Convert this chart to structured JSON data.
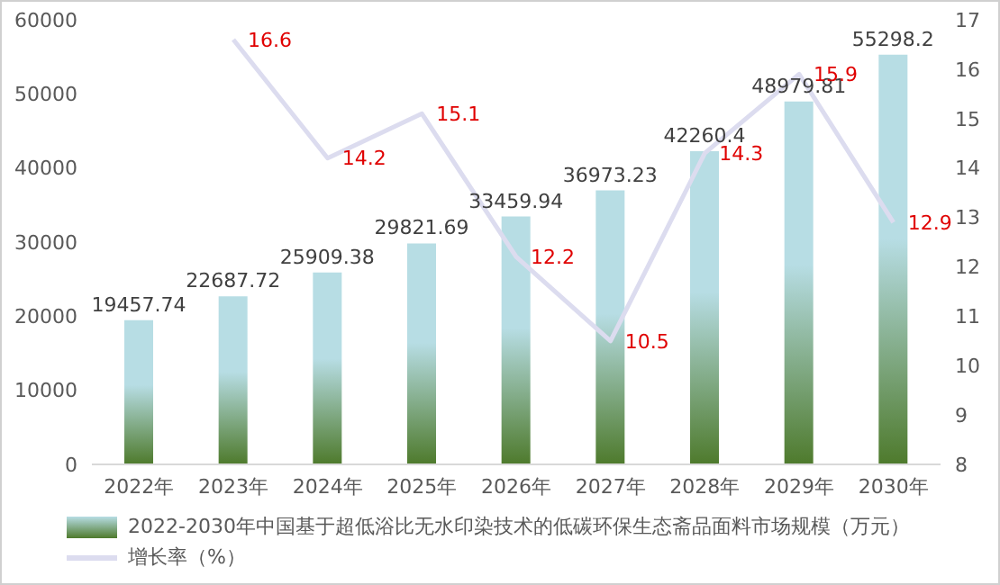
{
  "chart_data": {
    "type": "bar",
    "categories": [
      "2022年",
      "2023年",
      "2024年",
      "2025年",
      "2026年",
      "2027年",
      "2028年",
      "2029年",
      "2030年"
    ],
    "series": [
      {
        "name": "2022-2030年中国基于超低浴比无水印染技术的低碳环保生态斋品面料市场规模（万元）",
        "color": "#b7dde4",
        "values": [
          19457.74,
          22687.72,
          25909.38,
          29821.69,
          33459.94,
          36973.23,
          42260.4,
          48979.81,
          55298.2
        ]
      },
      {
        "name": "增长率（%）",
        "type": "line",
        "axis": "y2",
        "color": "#dcdcef",
        "values": [
          null,
          16.6,
          14.2,
          15.1,
          12.2,
          10.5,
          14.3,
          15.9,
          12.9
        ]
      }
    ],
    "ylim": [
      0,
      60000
    ],
    "yticks": [
      0,
      10000,
      20000,
      30000,
      40000,
      50000,
      60000
    ],
    "y2lim": [
      8,
      17
    ],
    "y2ticks": [
      8,
      9,
      10,
      11,
      12,
      13,
      14,
      15,
      16,
      17
    ],
    "data_labels": true,
    "legend": "bottom",
    "grid": false,
    "marker": "none",
    "line_style": "solid"
  }
}
